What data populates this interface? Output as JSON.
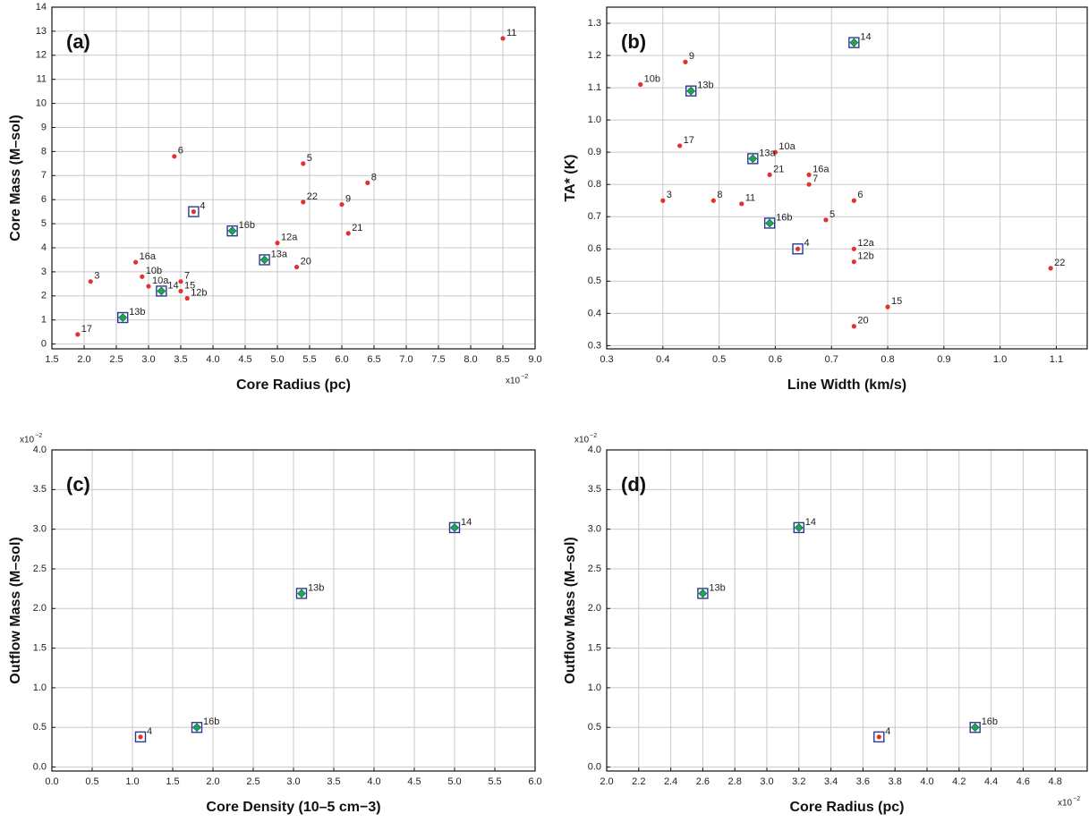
{
  "chart_data": [
    {
      "type": "scatter",
      "panel": "(a)",
      "x_label": "Core Radius (pc)",
      "y_label": "Core Mass (M–sol)",
      "x_multiplier": {
        "base": "x10",
        "power": "−2"
      },
      "xlim": [
        1.5,
        9.0
      ],
      "ylim": [
        -0.2,
        14
      ],
      "xticks": [
        1.5,
        {
          "value": 2,
          "label": "2.0"
        },
        2.5,
        {
          "value": 3,
          "label": "3.0"
        },
        3.5,
        {
          "value": 4,
          "label": "4.0"
        },
        4.5,
        {
          "value": 5,
          "label": "5.0"
        },
        5.5,
        {
          "value": 6,
          "label": "6.0"
        },
        6.5,
        {
          "value": 7,
          "label": "7.0"
        },
        7.5,
        {
          "value": 8,
          "label": "8.0"
        },
        8.5,
        {
          "value": 9,
          "label": "9.0"
        }
      ],
      "yticks": [
        0,
        1,
        2,
        3,
        4,
        5,
        6,
        7,
        8,
        9,
        10,
        11,
        12,
        13,
        14
      ],
      "grid": true,
      "series": [
        {
          "marker": "dot",
          "color": "#e3312b",
          "labels": [
            "11",
            "6",
            "5",
            "8",
            "22",
            "9",
            "21",
            "12a",
            "16a",
            "20",
            "10b",
            "3",
            "7",
            "10a",
            "15",
            "12b",
            "17"
          ],
          "x": [
            8.5,
            3.4,
            5.4,
            6.4,
            5.4,
            6.0,
            6.1,
            5.0,
            2.8,
            5.3,
            2.9,
            2.1,
            3.5,
            3.0,
            3.5,
            3.6,
            1.9
          ],
          "values": [
            12.7,
            7.8,
            7.5,
            6.7,
            5.9,
            5.8,
            4.6,
            4.2,
            3.4,
            3.2,
            2.8,
            2.6,
            2.6,
            2.4,
            2.2,
            1.9,
            0.4
          ]
        },
        {
          "marker": "boxed-dot",
          "color": "#e3312b",
          "box_color": "#2b3990",
          "labels": [
            "4"
          ],
          "x": [
            3.7
          ],
          "values": [
            5.5
          ]
        },
        {
          "marker": "boxed-diamond",
          "color": "#1fa35c",
          "box_color": "#2b3990",
          "labels": [
            "16b",
            "13a",
            "14",
            "13b"
          ],
          "x": [
            4.3,
            4.8,
            3.2,
            2.6
          ],
          "values": [
            4.7,
            3.5,
            2.2,
            1.1
          ]
        }
      ]
    },
    {
      "type": "scatter",
      "panel": "(b)",
      "x_label": "Line Width (km/s)",
      "y_label": "TA* (K)",
      "xlim": [
        0.3,
        1.155
      ],
      "ylim": [
        0.29,
        1.35
      ],
      "xticks": [
        0.3,
        0.4,
        0.5,
        0.6,
        0.7,
        0.8,
        0.9,
        {
          "value": 1,
          "label": "1.0"
        },
        1.1
      ],
      "yticks": [
        0.3,
        0.4,
        0.5,
        0.6,
        0.7,
        0.8,
        0.9,
        {
          "value": 1,
          "label": "1.0"
        },
        1.1,
        1.2,
        1.3
      ],
      "grid": true,
      "series": [
        {
          "marker": "dot",
          "color": "#e3312b",
          "labels": [
            "9",
            "10b",
            "17",
            "10a",
            "21",
            "16a",
            "7",
            "3",
            "8",
            "11",
            "6",
            "5",
            "12a",
            "12b",
            "22",
            "15",
            "20"
          ],
          "x": [
            0.44,
            0.36,
            0.43,
            0.6,
            0.59,
            0.66,
            0.66,
            0.4,
            0.49,
            0.54,
            0.74,
            0.69,
            0.74,
            0.74,
            1.09,
            0.8,
            0.74
          ],
          "values": [
            1.18,
            1.11,
            0.92,
            0.9,
            0.83,
            0.83,
            0.8,
            0.75,
            0.75,
            0.74,
            0.75,
            0.69,
            0.6,
            0.56,
            0.54,
            0.42,
            0.36
          ]
        },
        {
          "marker": "boxed-dot",
          "color": "#e3312b",
          "box_color": "#2b3990",
          "labels": [
            "4"
          ],
          "x": [
            0.64
          ],
          "values": [
            0.6
          ]
        },
        {
          "marker": "boxed-diamond",
          "color": "#1fa35c",
          "box_color": "#2b3990",
          "labels": [
            "14",
            "13b",
            "13a",
            "16b"
          ],
          "x": [
            0.74,
            0.45,
            0.56,
            0.59
          ],
          "values": [
            1.24,
            1.09,
            0.88,
            0.68
          ]
        }
      ]
    },
    {
      "type": "scatter",
      "panel": "(c)",
      "x_label": "Core Density (10–5 cm−3)",
      "y_label": "Outflow Mass (M–sol)",
      "y_multiplier": {
        "base": "x10",
        "power": "−2"
      },
      "xlim": [
        0,
        6
      ],
      "ylim": [
        -0.05,
        4.0
      ],
      "xticks": [
        {
          "value": 0,
          "label": "0.0"
        },
        0.5,
        {
          "value": 1,
          "label": "1.0"
        },
        1.5,
        {
          "value": 2,
          "label": "2.0"
        },
        2.5,
        {
          "value": 3,
          "label": "3.0"
        },
        3.5,
        {
          "value": 4,
          "label": "4.0"
        },
        4.5,
        {
          "value": 5,
          "label": "5.0"
        },
        5.5,
        {
          "value": 6,
          "label": "6.0"
        }
      ],
      "yticks": [
        {
          "value": 0,
          "label": "0.0"
        },
        0.5,
        {
          "value": 1,
          "label": "1.0"
        },
        1.5,
        {
          "value": 2,
          "label": "2.0"
        },
        2.5,
        {
          "value": 3,
          "label": "3.0"
        },
        3.5,
        {
          "value": 4,
          "label": "4.0"
        }
      ],
      "grid": true,
      "series": [
        {
          "marker": "boxed-dot",
          "color": "#e3312b",
          "box_color": "#2b3990",
          "labels": [
            "4"
          ],
          "x": [
            1.1
          ],
          "values": [
            0.38
          ]
        },
        {
          "marker": "boxed-diamond",
          "color": "#1fa35c",
          "box_color": "#2b3990",
          "labels": [
            "16b",
            "13b",
            "14"
          ],
          "x": [
            1.8,
            3.1,
            5.0
          ],
          "values": [
            0.5,
            2.19,
            3.02
          ]
        }
      ]
    },
    {
      "type": "scatter",
      "panel": "(d)",
      "x_label": "Core Radius (pc)",
      "y_label": "Outflow Mass (M–sol)",
      "x_multiplier": {
        "base": "x10",
        "power": "−2"
      },
      "y_multiplier": {
        "base": "x10",
        "power": "−2"
      },
      "xlim": [
        2.0,
        5.0
      ],
      "ylim": [
        -0.05,
        4.0
      ],
      "xticks": [
        {
          "value": 2,
          "label": "2.0"
        },
        2.2,
        2.4,
        2.6,
        2.8,
        {
          "value": 3,
          "label": "3.0"
        },
        3.2,
        3.4,
        3.6,
        3.8,
        {
          "value": 4,
          "label": "4.0"
        },
        4.2,
        4.4,
        4.6,
        4.8
      ],
      "yticks": [
        {
          "value": 0,
          "label": "0.0"
        },
        0.5,
        {
          "value": 1,
          "label": "1.0"
        },
        1.5,
        {
          "value": 2,
          "label": "2.0"
        },
        2.5,
        {
          "value": 3,
          "label": "3.0"
        },
        3.5,
        {
          "value": 4,
          "label": "4.0"
        }
      ],
      "grid": true,
      "series": [
        {
          "marker": "boxed-dot",
          "color": "#e3312b",
          "box_color": "#2b3990",
          "labels": [
            "4"
          ],
          "x": [
            3.7
          ],
          "values": [
            0.38
          ]
        },
        {
          "marker": "boxed-diamond",
          "color": "#1fa35c",
          "box_color": "#2b3990",
          "labels": [
            "14",
            "13b",
            "16b"
          ],
          "x": [
            3.2,
            2.6,
            4.3
          ],
          "values": [
            3.02,
            2.19,
            0.5
          ]
        }
      ]
    }
  ]
}
